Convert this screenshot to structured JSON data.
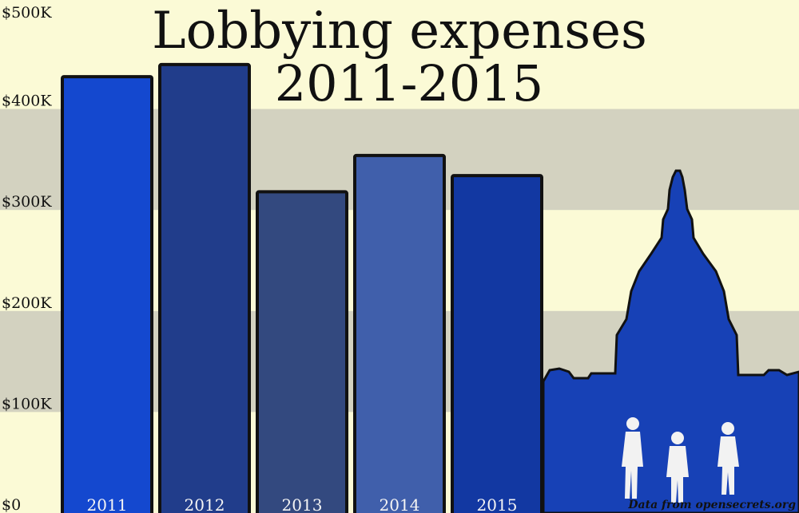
{
  "chart_data": {
    "type": "bar",
    "title": "Lobbying expenses",
    "subtitle": "2011-2015",
    "categories": [
      "2011",
      "2012",
      "2013",
      "2014",
      "2015"
    ],
    "values": [
      432000,
      444000,
      318000,
      354000,
      334000
    ],
    "y_ticks": [
      {
        "value": 0,
        "label": "$0"
      },
      {
        "value": 100000,
        "label": "$100K"
      },
      {
        "value": 200000,
        "label": "$200K"
      },
      {
        "value": 300000,
        "label": "$300K"
      },
      {
        "value": 400000,
        "label": "$400K"
      },
      {
        "value": 500000,
        "label": "$500K"
      }
    ],
    "ylim": [
      0,
      500000
    ],
    "grid": "alternating bands",
    "colors": {
      "background": "#fbfad6",
      "band": "#d3d2c0",
      "bars": [
        "#1448cf",
        "#213d8b",
        "#33497f",
        "#405fab",
        "#1238a2"
      ],
      "capitol": "#1741b6",
      "outline": "#111111"
    },
    "source": "Data from opensecrets.org",
    "illustration": "capitol-dome-icon"
  }
}
